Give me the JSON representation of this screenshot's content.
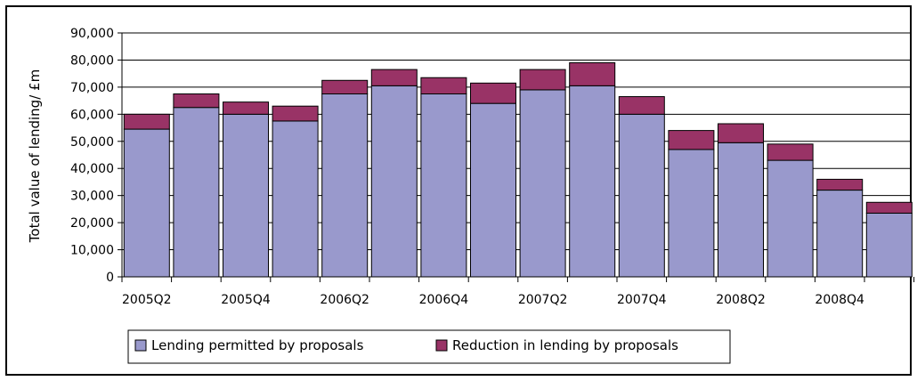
{
  "chart_data": {
    "type": "bar",
    "stacked": true,
    "title": "",
    "xlabel": "",
    "ylabel": "Total value of lending/ £m",
    "ylim": [
      0,
      90000
    ],
    "yticks": [
      "0",
      "10,000",
      "20,000",
      "30,000",
      "40,000",
      "50,000",
      "60,000",
      "70,000",
      "80,000",
      "90,000"
    ],
    "ytick_values": [
      0,
      10000,
      20000,
      30000,
      40000,
      50000,
      60000,
      70000,
      80000,
      90000
    ],
    "categories": [
      "2005Q2",
      "2005Q3",
      "2005Q4",
      "2006Q1",
      "2006Q2",
      "2006Q3",
      "2006Q4",
      "2007Q1",
      "2007Q2",
      "2007Q3",
      "2007Q4",
      "2008Q1",
      "2008Q2",
      "2008Q3",
      "2008Q4",
      "2009Q1"
    ],
    "shown_xticks": [
      "2005Q2",
      "2005Q4",
      "2006Q2",
      "2006Q4",
      "2007Q2",
      "2007Q4",
      "2008Q2",
      "2008Q4"
    ],
    "grid": true,
    "legend_position": "bottom",
    "series": [
      {
        "name": "Lending permitted by proposals",
        "color": "#9999cc",
        "values": [
          54500,
          62500,
          60000,
          57500,
          67500,
          70500,
          67500,
          64000,
          69000,
          70500,
          60000,
          47000,
          49500,
          43000,
          32000,
          23500
        ]
      },
      {
        "name": "Reduction in lending by proposals",
        "color": "#993366",
        "values": [
          5500,
          5000,
          4500,
          5500,
          5000,
          6000,
          6000,
          7500,
          7500,
          8500,
          6500,
          7000,
          7000,
          6000,
          4000,
          4000
        ]
      }
    ]
  }
}
